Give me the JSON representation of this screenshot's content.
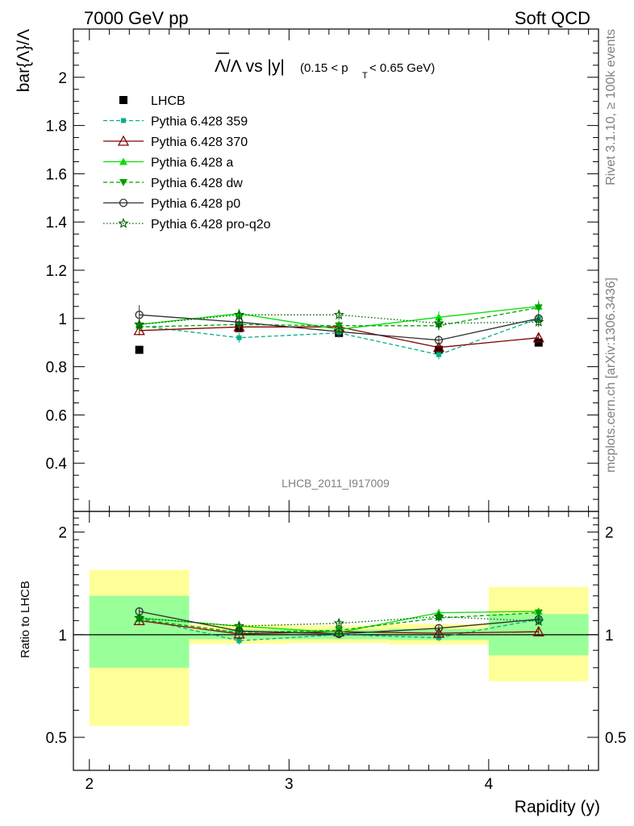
{
  "header": {
    "left": "7000 GeV pp",
    "right": "Soft QCD"
  },
  "side": {
    "top": "Rivet 3.1.10, ≥ 100k events",
    "bottom": "mcplots.cern.ch [arXiv:1306.3436]"
  },
  "watermark": "LHCB_2011_I917009",
  "chart_data": [
    {
      "type": "scatter",
      "title": "Λ̅/Λ vs |y|(0.15 < pT < 0.65 GeV)",
      "title_parts": {
        "main": "Λ/Λ vs |y|",
        "paren_open": "(0.15 < p",
        "sub": "T",
        "paren_close": " < 0.65 GeV)"
      },
      "ylabel": "bar{Λ}/Λ",
      "xlim": [
        1.92,
        4.55
      ],
      "ylim": [
        0.2,
        2.2
      ],
      "yticks": [
        0.4,
        0.6,
        0.8,
        1,
        1.2,
        1.4,
        1.6,
        1.8,
        2
      ],
      "ytick_labels": [
        "0.4",
        "0.6",
        "0.8",
        "1",
        "1.2",
        "1.4",
        "1.6",
        "1.8",
        "2"
      ],
      "legend_position": "top-left",
      "x": [
        2.25,
        2.75,
        3.25,
        3.75,
        4.25
      ],
      "bins": [
        [
          2.0,
          2.5
        ],
        [
          2.5,
          3.0
        ],
        [
          3.0,
          3.5
        ],
        [
          3.5,
          4.0
        ],
        [
          4.0,
          4.5
        ]
      ],
      "series": [
        {
          "name": "LHCB",
          "color": "#000000",
          "marker": "square",
          "line": "none",
          "values": [
            0.87,
            0.96,
            0.94,
            0.87,
            0.9
          ]
        },
        {
          "name": "Pythia 6.428 359",
          "color": "#00B08A",
          "marker": "small-square",
          "line": "dashed",
          "values": [
            0.97,
            0.92,
            0.94,
            0.85,
            1.0
          ],
          "errors": [
            0.02,
            0.02,
            0.02,
            0.02,
            0.02
          ]
        },
        {
          "name": "Pythia 6.428 370",
          "color": "#800000",
          "marker": "open-triangle",
          "line": "solid",
          "values": [
            0.95,
            0.965,
            0.965,
            0.88,
            0.92
          ],
          "errors": [
            0.02,
            0.02,
            0.02,
            0.02,
            0.02
          ]
        },
        {
          "name": "Pythia 6.428 a",
          "color": "#00E000",
          "marker": "triangle",
          "line": "solid",
          "values": [
            0.975,
            1.02,
            0.955,
            1.005,
            1.05
          ],
          "errors": [
            0.02,
            0.02,
            0.02,
            0.025,
            0.025
          ]
        },
        {
          "name": "Pythia 6.428 dw",
          "color": "#00A000",
          "marker": "inverted-triangle",
          "line": "dashed",
          "values": [
            0.965,
            0.975,
            0.97,
            0.97,
            1.045
          ],
          "errors": [
            0.02,
            0.02,
            0.02,
            0.02,
            0.025
          ]
        },
        {
          "name": "Pythia 6.428 p0",
          "color": "#303030",
          "marker": "open-circle",
          "line": "solid",
          "values": [
            1.015,
            0.985,
            0.945,
            0.91,
            1.0
          ],
          "errors": [
            0.04,
            0.02,
            0.02,
            0.02,
            0.02
          ]
        },
        {
          "name": "Pythia 6.428 pro-q2o",
          "color": "#006000",
          "marker": "open-star",
          "line": "dotted",
          "values": [
            0.975,
            1.015,
            1.015,
            0.98,
            0.985
          ],
          "errors": [
            0.02,
            0.02,
            0.02,
            0.02,
            0.02
          ]
        }
      ]
    },
    {
      "type": "scatter",
      "title": "",
      "ylabel": "Ratio to LHCB",
      "xlabel": "Rapidity (y)",
      "xlim": [
        1.92,
        4.55
      ],
      "ylim": [
        0.4,
        2.3
      ],
      "log_y": true,
      "xticks": [
        2,
        3,
        4
      ],
      "xtick_labels": [
        "2",
        "3",
        "4"
      ],
      "yticks": [
        0.5,
        1,
        2
      ],
      "ytick_labels": [
        "0.5",
        "1",
        "2"
      ],
      "reference_line": 1,
      "uncertainty_bands": {
        "bins": [
          [
            2.0,
            2.5
          ],
          [
            2.5,
            3.0
          ],
          [
            3.0,
            3.5
          ],
          [
            3.5,
            4.0
          ],
          [
            4.0,
            4.5
          ]
        ],
        "inner_color": "#99FF99",
        "outer_color": "#FFFF99",
        "inner": [
          [
            0.8,
            1.3
          ],
          [
            0.97,
            1.035
          ],
          [
            0.97,
            1.035
          ],
          [
            0.965,
            1.04
          ],
          [
            0.87,
            1.15
          ]
        ],
        "outer": [
          [
            0.54,
            1.55
          ],
          [
            0.94,
            1.07
          ],
          [
            0.945,
            1.065
          ],
          [
            0.935,
            1.075
          ],
          [
            0.73,
            1.38
          ]
        ]
      },
      "x": [
        2.25,
        2.75,
        3.25,
        3.75,
        4.25
      ],
      "series": [
        {
          "name": "Pythia 6.428 359",
          "color": "#00B08A",
          "values": [
            1.12,
            0.96,
            1.0,
            0.98,
            1.11
          ]
        },
        {
          "name": "Pythia 6.428 370",
          "color": "#800000",
          "values": [
            1.1,
            1.005,
            1.02,
            1.01,
            1.02
          ]
        },
        {
          "name": "Pythia 6.428 a",
          "color": "#00E000",
          "values": [
            1.12,
            1.06,
            1.015,
            1.16,
            1.17
          ]
        },
        {
          "name": "Pythia 6.428 dw",
          "color": "#00A000",
          "values": [
            1.11,
            1.015,
            1.03,
            1.12,
            1.16
          ]
        },
        {
          "name": "Pythia 6.428 p0",
          "color": "#303030",
          "values": [
            1.17,
            1.025,
            1.005,
            1.045,
            1.11
          ]
        },
        {
          "name": "Pythia 6.428 pro-q2o",
          "color": "#006000",
          "values": [
            1.12,
            1.06,
            1.08,
            1.13,
            1.095
          ]
        }
      ]
    }
  ]
}
